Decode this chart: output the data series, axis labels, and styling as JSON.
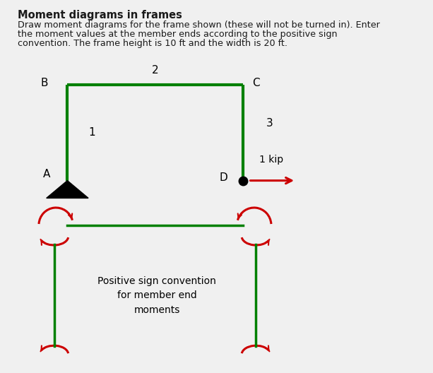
{
  "title": "Moment diagrams in frames",
  "desc_line1": "Draw moment diagrams for the frame shown (these will not be turned in). Enter",
  "desc_line2": "the moment values at the member ends according to the positive sign",
  "desc_line3": "convention. The frame height is 10 ft and the width is 20 ft.",
  "frame_color": "#008000",
  "frame_lw": 3.0,
  "red_color": "#cc0000",
  "bg_color": "#f0f0f0",
  "panel_color": "#ffffff",
  "text_color": "#1a1a1a",
  "sign_text": "Positive sign convention\nfor member end\nmoments"
}
